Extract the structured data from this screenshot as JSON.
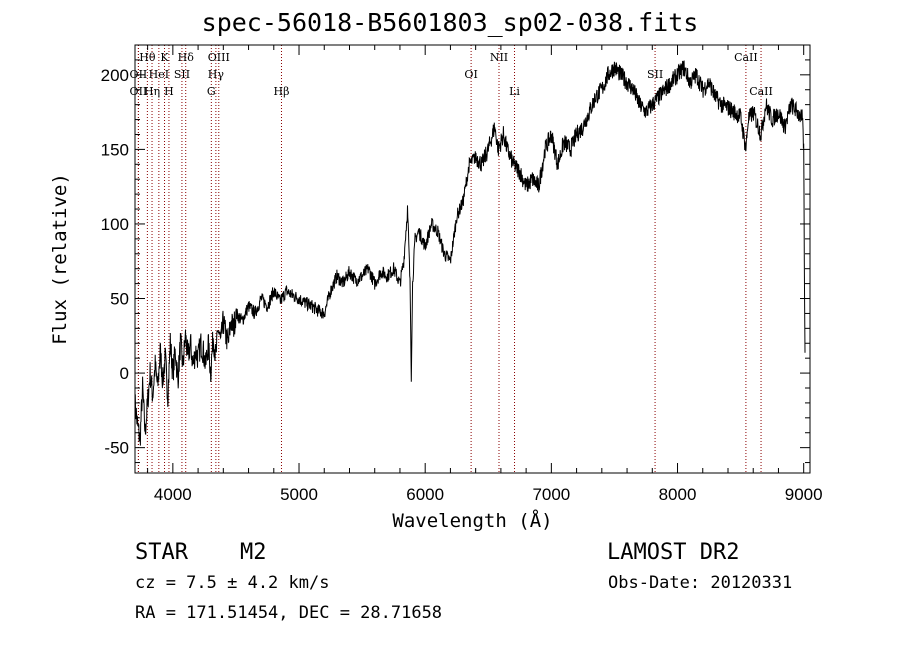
{
  "header": {
    "title": "spec-56018-B5601803_sp02-038.fits"
  },
  "info": {
    "obj_class": "STAR",
    "obj_type": "M2",
    "survey": "LAMOST DR2",
    "cz": "cz = 7.5 ± 4.2 km/s",
    "obs_date": "Obs-Date: 20120331",
    "radec": "RA = 171.51454, DEC =  28.71658"
  },
  "colors": {
    "line": "#000000",
    "marker": "#8b0000",
    "background": "#ffffff"
  },
  "chart_data": {
    "type": "line",
    "title": "spec-56018-B5601803_sp02-038.fits",
    "xlabel": "Wavelength (Å)",
    "ylabel": "Flux (relative)",
    "xlim": [
      3700,
      9050
    ],
    "ylim": [
      -67,
      220
    ],
    "xticks": [
      4000,
      5000,
      6000,
      7000,
      8000,
      9000
    ],
    "yticks": [
      -50,
      0,
      50,
      100,
      150,
      200
    ],
    "grid": false,
    "series": [
      {
        "values_format": "[wavelength_angstrom, relative_flux]",
        "points": [
          [
            3700,
            -20
          ],
          [
            3720,
            -35
          ],
          [
            3740,
            -45
          ],
          [
            3760,
            -10
          ],
          [
            3780,
            -40
          ],
          [
            3800,
            -20
          ],
          [
            3820,
            0
          ],
          [
            3840,
            -15
          ],
          [
            3860,
            5
          ],
          [
            3880,
            -10
          ],
          [
            3900,
            15
          ],
          [
            3920,
            -5
          ],
          [
            3940,
            10
          ],
          [
            3960,
            -15
          ],
          [
            3980,
            20
          ],
          [
            4000,
            0
          ],
          [
            4020,
            15
          ],
          [
            4040,
            -5
          ],
          [
            4060,
            20
          ],
          [
            4080,
            5
          ],
          [
            4100,
            25
          ],
          [
            4120,
            10
          ],
          [
            4140,
            20
          ],
          [
            4160,
            5
          ],
          [
            4180,
            15
          ],
          [
            4200,
            10
          ],
          [
            4220,
            20
          ],
          [
            4240,
            15
          ],
          [
            4260,
            5
          ],
          [
            4280,
            20
          ],
          [
            4300,
            0
          ],
          [
            4320,
            25
          ],
          [
            4340,
            10
          ],
          [
            4360,
            30
          ],
          [
            4380,
            20
          ],
          [
            4400,
            35
          ],
          [
            4420,
            25
          ],
          [
            4440,
            20
          ],
          [
            4460,
            35
          ],
          [
            4480,
            30
          ],
          [
            4500,
            40
          ],
          [
            4550,
            35
          ],
          [
            4600,
            45
          ],
          [
            4650,
            40
          ],
          [
            4700,
            50
          ],
          [
            4750,
            45
          ],
          [
            4800,
            55
          ],
          [
            4850,
            48
          ],
          [
            4900,
            55
          ],
          [
            4950,
            52
          ],
          [
            5000,
            50
          ],
          [
            5050,
            47
          ],
          [
            5100,
            45
          ],
          [
            5150,
            42
          ],
          [
            5200,
            40
          ],
          [
            5250,
            55
          ],
          [
            5300,
            65
          ],
          [
            5350,
            60
          ],
          [
            5400,
            68
          ],
          [
            5450,
            62
          ],
          [
            5500,
            65
          ],
          [
            5550,
            70
          ],
          [
            5600,
            60
          ],
          [
            5650,
            68
          ],
          [
            5700,
            65
          ],
          [
            5750,
            70
          ],
          [
            5800,
            60
          ],
          [
            5830,
            75
          ],
          [
            5860,
            110
          ],
          [
            5880,
            60
          ],
          [
            5890,
            -2
          ],
          [
            5900,
            60
          ],
          [
            5920,
            90
          ],
          [
            5950,
            95
          ],
          [
            6000,
            85
          ],
          [
            6050,
            100
          ],
          [
            6100,
            95
          ],
          [
            6150,
            80
          ],
          [
            6200,
            75
          ],
          [
            6250,
            105
          ],
          [
            6300,
            115
          ],
          [
            6350,
            140
          ],
          [
            6400,
            145
          ],
          [
            6450,
            140
          ],
          [
            6500,
            150
          ],
          [
            6550,
            165
          ],
          [
            6580,
            150
          ],
          [
            6620,
            160
          ],
          [
            6650,
            150
          ],
          [
            6700,
            140
          ],
          [
            6750,
            135
          ],
          [
            6800,
            125
          ],
          [
            6850,
            130
          ],
          [
            6900,
            125
          ],
          [
            6950,
            150
          ],
          [
            7000,
            160
          ],
          [
            7050,
            140
          ],
          [
            7100,
            155
          ],
          [
            7150,
            150
          ],
          [
            7200,
            160
          ],
          [
            7250,
            165
          ],
          [
            7300,
            175
          ],
          [
            7350,
            185
          ],
          [
            7400,
            190
          ],
          [
            7450,
            200
          ],
          [
            7500,
            205
          ],
          [
            7550,
            200
          ],
          [
            7600,
            195
          ],
          [
            7650,
            190
          ],
          [
            7700,
            180
          ],
          [
            7750,
            175
          ],
          [
            7800,
            180
          ],
          [
            7850,
            185
          ],
          [
            7900,
            190
          ],
          [
            7950,
            195
          ],
          [
            8000,
            200
          ],
          [
            8050,
            205
          ],
          [
            8100,
            195
          ],
          [
            8150,
            200
          ],
          [
            8200,
            190
          ],
          [
            8250,
            195
          ],
          [
            8300,
            185
          ],
          [
            8350,
            180
          ],
          [
            8400,
            178
          ],
          [
            8450,
            175
          ],
          [
            8500,
            172
          ],
          [
            8542,
            150
          ],
          [
            8560,
            170
          ],
          [
            8600,
            175
          ],
          [
            8662,
            160
          ],
          [
            8700,
            180
          ],
          [
            8750,
            170
          ],
          [
            8800,
            175
          ],
          [
            8850,
            165
          ],
          [
            8900,
            180
          ],
          [
            8950,
            175
          ],
          [
            8990,
            170
          ],
          [
            9000,
            150
          ],
          [
            9010,
            10
          ]
        ]
      }
    ],
    "line_markers": [
      {
        "label": "Hθ",
        "x": 3798,
        "row": 0
      },
      {
        "label": "K",
        "x": 3934,
        "row": 0
      },
      {
        "label": "Hδ",
        "x": 4102,
        "row": 0
      },
      {
        "label": "OIII",
        "x": 4364,
        "row": 0
      },
      {
        "label": "NII",
        "x": 6585,
        "row": 0
      },
      {
        "label": "CaII",
        "x": 8542,
        "row": 0
      },
      {
        "label": "OII",
        "x": 3727,
        "row": 1
      },
      {
        "label": "HeI",
        "x": 3889,
        "row": 1
      },
      {
        "label": "SII",
        "x": 4072,
        "row": 1
      },
      {
        "label": "Hγ",
        "x": 4341,
        "row": 1
      },
      {
        "label": "OI",
        "x": 6364,
        "row": 1
      },
      {
        "label": "SII",
        "x": 7822,
        "row": 1
      },
      {
        "label": "OII",
        "x": 3727,
        "row": 2
      },
      {
        "label": "Hη",
        "x": 3835,
        "row": 2
      },
      {
        "label": "H",
        "x": 3969,
        "row": 2
      },
      {
        "label": "G",
        "x": 4305,
        "row": 2
      },
      {
        "label": "Hβ",
        "x": 4861,
        "row": 2
      },
      {
        "label": "Li",
        "x": 6708,
        "row": 2
      },
      {
        "label": "CaII",
        "x": 8662,
        "row": 2
      }
    ]
  }
}
